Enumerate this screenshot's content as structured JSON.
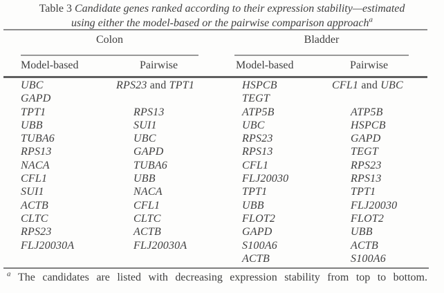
{
  "caption": {
    "label": "Table 3",
    "line1": "Candidate genes ranked according to their expression stability—estimated",
    "line2": "using either the model-based or the pairwise comparison approach",
    "superscript": "a"
  },
  "columns": {
    "groups": [
      {
        "label": "Colon"
      },
      {
        "label": "Bladder"
      }
    ],
    "subheaders": [
      "Model-based",
      "Pairwise",
      "Model-based",
      "Pairwise"
    ]
  },
  "rows": [
    [
      "UBC",
      "RPS23 and TPT1",
      "HSPCB",
      "CFL1 and UBC"
    ],
    [
      "GAPD",
      "",
      "TEGT",
      ""
    ],
    [
      "TPT1",
      "RPS13",
      "ATP5B",
      "ATP5B"
    ],
    [
      "UBB",
      "SUI1",
      "UBC",
      "HSPCB"
    ],
    [
      "TUBA6",
      "UBC",
      "RPS23",
      "GAPD"
    ],
    [
      "RPS13",
      "GAPD",
      "RPS13",
      "TEGT"
    ],
    [
      "NACA",
      "TUBA6",
      "CFL1",
      "RPS23"
    ],
    [
      "CFL1",
      "UBB",
      "FLJ20030",
      "RPS13"
    ],
    [
      "SUI1",
      "NACA",
      "TPT1",
      "TPT1"
    ],
    [
      "ACTB",
      "CFL1",
      "UBB",
      "FLJ20030"
    ],
    [
      "CLTC",
      "CLTC",
      "FLOT2",
      "FLOT2"
    ],
    [
      "RPS23",
      "ACTB",
      "GAPD",
      "UBB"
    ],
    [
      "FLJ20030A",
      "FLJ20030A",
      "S100A6",
      "ACTB"
    ],
    [
      "",
      "",
      "ACTB",
      "S100A6"
    ]
  ],
  "footnote": {
    "superscript": "a",
    "text": "The candidates are listed with decreasing expression stability from top to bottom."
  },
  "colors": {
    "text": "#3e3e3e",
    "rule_light": "#8c8c8c",
    "rule_dark": "#5f5f5f",
    "background": "#fdfdfc"
  }
}
